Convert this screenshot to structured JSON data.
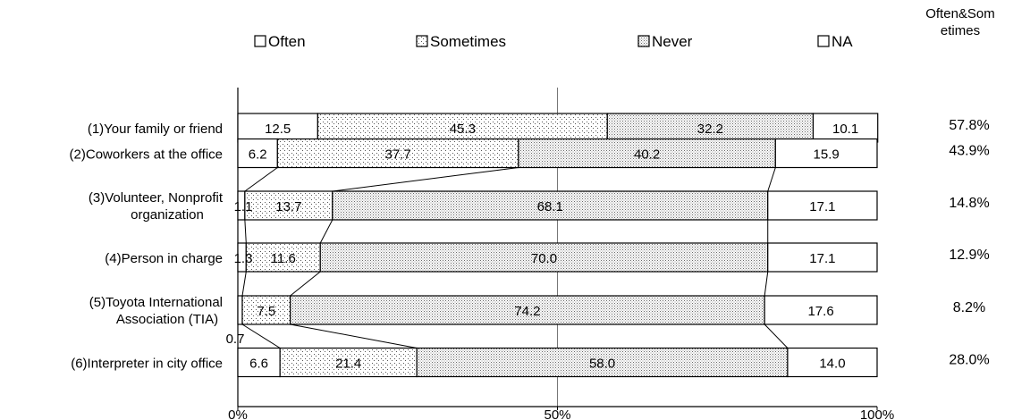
{
  "chart_data": {
    "type": "bar",
    "orientation": "horizontal",
    "stacked": "percent",
    "categories": [
      "(1)Your family or friend",
      "(2)Coworkers at the office",
      "(3)Volunteer, Nonprofit organization",
      "(4)Person in charge",
      "(5)Toyota International Association (TIA)",
      "(6)Interpreter in city office"
    ],
    "category_lines": [
      [
        "(1)Your family or friend"
      ],
      [
        "(2)Coworkers at the office"
      ],
      [
        "(3)Volunteer, Nonprofit",
        "organization"
      ],
      [
        "(4)Person in charge"
      ],
      [
        "(5)Toyota International",
        "Association (TIA)"
      ],
      [
        "(6)Interpreter in city office"
      ]
    ],
    "series": [
      {
        "name": "Often",
        "values": [
          12.5,
          6.2,
          1.1,
          1.3,
          0.7,
          6.6
        ],
        "labels": [
          "12.5",
          "6.2",
          "1.1",
          "1.3",
          "0.7",
          "6.6"
        ],
        "pattern": "white"
      },
      {
        "name": "Sometimes",
        "values": [
          45.3,
          37.7,
          13.7,
          11.6,
          7.5,
          21.4
        ],
        "labels": [
          "45.3",
          "37.7",
          "13.7",
          "11.6",
          "7.5",
          "21.4"
        ],
        "pattern": "sparse-dots"
      },
      {
        "name": "Never",
        "values": [
          32.2,
          40.2,
          68.1,
          70.0,
          74.2,
          58.0
        ],
        "labels": [
          "32.2",
          "40.2",
          "68.1",
          "70.0",
          "74.2",
          "58.0"
        ],
        "pattern": "dense-dots"
      },
      {
        "name": "NA",
        "values": [
          10.1,
          15.9,
          17.1,
          17.1,
          17.6,
          14.0
        ],
        "labels": [
          "10.1",
          "15.9",
          "17.1",
          "17.1",
          "17.6",
          "14.0"
        ],
        "pattern": "white"
      }
    ],
    "summary_header": [
      "Often&Som",
      "etimes"
    ],
    "summary_values": [
      "57.8%",
      "43.9%",
      "14.8%",
      "12.9%",
      "8.2%",
      "28.0%"
    ],
    "x_ticks": [
      "0%",
      "50%",
      "100%"
    ],
    "xlim": [
      0,
      100
    ],
    "gridlines": [
      50
    ],
    "legend_position": "top",
    "colors": {
      "stroke": "#000000",
      "dot": "#555555",
      "background": "#ffffff"
    }
  }
}
